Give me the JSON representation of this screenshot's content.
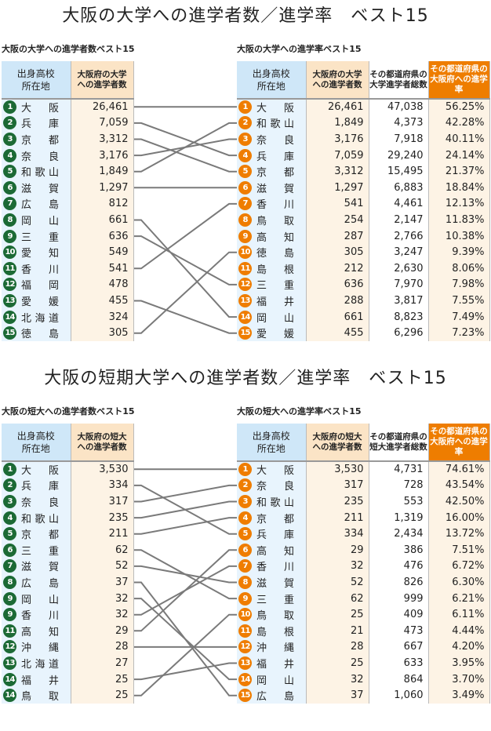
{
  "sections": [
    {
      "title": "大阪の大学への進学者数／進学率　ベスト15",
      "left": {
        "subtitle": "大阪の大学への進学者数ベスト15",
        "headers": [
          "出身高校\n所在地",
          "大阪府の大学\nへの進学者数"
        ],
        "rows": [
          [
            "1",
            "大　阪",
            "26,461"
          ],
          [
            "2",
            "兵　庫",
            "7,059"
          ],
          [
            "3",
            "京　都",
            "3,312"
          ],
          [
            "4",
            "奈　良",
            "3,176"
          ],
          [
            "5",
            "和歌山",
            "1,849"
          ],
          [
            "6",
            "滋　賀",
            "1,297"
          ],
          [
            "7",
            "広　島",
            "812"
          ],
          [
            "8",
            "岡　山",
            "661"
          ],
          [
            "9",
            "三　重",
            "636"
          ],
          [
            "10",
            "愛　知",
            "549"
          ],
          [
            "11",
            "香　川",
            "541"
          ],
          [
            "12",
            "福　岡",
            "478"
          ],
          [
            "13",
            "愛　媛",
            "455"
          ],
          [
            "14",
            "北海道",
            "324"
          ],
          [
            "15",
            "徳　島",
            "305"
          ]
        ]
      },
      "right": {
        "subtitle": "大阪の大学への進学率ベスト15",
        "headers": [
          "出身高校\n所在地",
          "大阪府の大学\nへの進学者数",
          "その都道府県の\n大学進学者総数",
          "その都道府県の\n大阪府への進学率"
        ],
        "rows": [
          [
            "1",
            "大　阪",
            "26,461",
            "47,038",
            "56.25%"
          ],
          [
            "2",
            "和歌山",
            "1,849",
            "4,373",
            "42.28%"
          ],
          [
            "3",
            "奈　良",
            "3,176",
            "7,918",
            "40.11%"
          ],
          [
            "4",
            "兵　庫",
            "7,059",
            "29,240",
            "24.14%"
          ],
          [
            "5",
            "京　都",
            "3,312",
            "15,495",
            "21.37%"
          ],
          [
            "6",
            "滋　賀",
            "1,297",
            "6,883",
            "18.84%"
          ],
          [
            "7",
            "香　川",
            "541",
            "4,461",
            "12.13%"
          ],
          [
            "8",
            "鳥　取",
            "254",
            "2,147",
            "11.83%"
          ],
          [
            "9",
            "高　知",
            "287",
            "2,766",
            "10.38%"
          ],
          [
            "10",
            "徳　島",
            "305",
            "3,247",
            "9.39%"
          ],
          [
            "11",
            "島　根",
            "212",
            "2,630",
            "8.06%"
          ],
          [
            "12",
            "三　重",
            "636",
            "7,970",
            "7.98%"
          ],
          [
            "13",
            "福　井",
            "288",
            "3,817",
            "7.55%"
          ],
          [
            "14",
            "岡　山",
            "661",
            "8,823",
            "7.49%"
          ],
          [
            "15",
            "愛　媛",
            "455",
            "6,296",
            "7.23%"
          ]
        ]
      },
      "links": [
        [
          0,
          0
        ],
        [
          1,
          3
        ],
        [
          2,
          4
        ],
        [
          3,
          2
        ],
        [
          4,
          1
        ],
        [
          5,
          5
        ],
        [
          7,
          13
        ],
        [
          8,
          11
        ],
        [
          10,
          6
        ],
        [
          12,
          14
        ],
        [
          14,
          9
        ]
      ]
    },
    {
      "title": "大阪の短期大学への進学者数／進学率　ベスト15",
      "left": {
        "subtitle": "大阪の短大への進学者数ベスト15",
        "headers": [
          "出身高校\n所在地",
          "大阪府の短大\nへの進学者数"
        ],
        "rows": [
          [
            "1",
            "大　阪",
            "3,530"
          ],
          [
            "2",
            "兵　庫",
            "334"
          ],
          [
            "3",
            "奈　良",
            "317"
          ],
          [
            "4",
            "和歌山",
            "235"
          ],
          [
            "5",
            "京　都",
            "211"
          ],
          [
            "6",
            "三　重",
            "62"
          ],
          [
            "7",
            "滋　賀",
            "52"
          ],
          [
            "8",
            "広　島",
            "37"
          ],
          [
            "9",
            "岡　山",
            "32"
          ],
          [
            "9",
            "香　川",
            "32"
          ],
          [
            "11",
            "高　知",
            "29"
          ],
          [
            "12",
            "沖　縄",
            "28"
          ],
          [
            "13",
            "北海道",
            "27"
          ],
          [
            "14",
            "福　井",
            "25"
          ],
          [
            "14",
            "鳥　取",
            "25"
          ]
        ]
      },
      "right": {
        "subtitle": "大阪の短大への進学率ベスト15",
        "headers": [
          "出身高校\n所在地",
          "大阪府の短大\nへの進学者数",
          "その都道府県の\n短大進学者総数",
          "その都道府県の\n大阪府への進学率"
        ],
        "rows": [
          [
            "1",
            "大　阪",
            "3,530",
            "4,731",
            "74.61%"
          ],
          [
            "2",
            "奈　良",
            "317",
            "728",
            "43.54%"
          ],
          [
            "3",
            "和歌山",
            "235",
            "553",
            "42.50%"
          ],
          [
            "4",
            "京　都",
            "211",
            "1,319",
            "16.00%"
          ],
          [
            "5",
            "兵　庫",
            "334",
            "2,434",
            "13.72%"
          ],
          [
            "6",
            "高　知",
            "29",
            "386",
            "7.51%"
          ],
          [
            "7",
            "香　川",
            "32",
            "476",
            "6.72%"
          ],
          [
            "8",
            "滋　賀",
            "52",
            "826",
            "6.30%"
          ],
          [
            "9",
            "三　重",
            "62",
            "999",
            "6.21%"
          ],
          [
            "10",
            "鳥　取",
            "25",
            "409",
            "6.11%"
          ],
          [
            "11",
            "島　根",
            "21",
            "473",
            "4.44%"
          ],
          [
            "12",
            "沖　縄",
            "28",
            "667",
            "4.20%"
          ],
          [
            "13",
            "福　井",
            "25",
            "633",
            "3.95%"
          ],
          [
            "14",
            "岡　山",
            "32",
            "864",
            "3.70%"
          ],
          [
            "15",
            "広　島",
            "37",
            "1,060",
            "3.49%"
          ]
        ]
      },
      "links": [
        [
          0,
          0
        ],
        [
          1,
          4
        ],
        [
          2,
          1
        ],
        [
          3,
          2
        ],
        [
          4,
          3
        ],
        [
          5,
          8
        ],
        [
          6,
          7
        ],
        [
          7,
          14
        ],
        [
          8,
          13
        ],
        [
          9,
          6
        ],
        [
          10,
          5
        ],
        [
          11,
          11
        ],
        [
          13,
          12
        ],
        [
          14,
          9
        ]
      ]
    }
  ],
  "colors": {
    "left_badge": "#1c6a35",
    "right_badge": "#ef7d00",
    "rate_header": "#ee7d00"
  }
}
